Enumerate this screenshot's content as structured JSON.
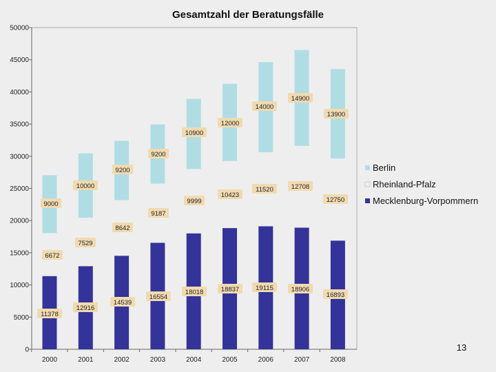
{
  "chart_data": {
    "type": "bar",
    "stacked": true,
    "title": "Gesamtzahl der Beratungsfälle",
    "xlabel": "",
    "ylabel": "",
    "ylim": [
      0,
      50000
    ],
    "yticks": [
      0,
      5000,
      10000,
      15000,
      20000,
      25000,
      30000,
      35000,
      40000,
      45000,
      50000
    ],
    "ytick_labels": [
      "0",
      "5000",
      "10000",
      "15000",
      "20000",
      "25000",
      "30000",
      "35000",
      "40000",
      "45000",
      "50000"
    ],
    "categories": [
      "2000",
      "2001",
      "2002",
      "2003",
      "2004",
      "2005",
      "2006",
      "2007",
      "2008"
    ],
    "series": [
      {
        "name": "Mecklenburg-Vorpommern",
        "color": "#333399",
        "values": [
          11378,
          12916,
          14539,
          16554,
          18018,
          18837,
          19115,
          18906,
          16893
        ],
        "labels": [
          "11378",
          "12916",
          "14539",
          "16554",
          "18018",
          "18837",
          "19115",
          "18906",
          "16893"
        ]
      },
      {
        "name": "Rheinland-Pfalz",
        "color": "#eeeeee",
        "values": [
          6672,
          7529,
          8642,
          9187,
          9999,
          10423,
          11520,
          12708,
          12750
        ],
        "labels": [
          "6672",
          "7529",
          "8642",
          "9187",
          "9999",
          "10423",
          "11520",
          "12708",
          "12750"
        ]
      },
      {
        "name": "Berlin",
        "color": "#b0dde4",
        "values": [
          9000,
          10000,
          9200,
          9200,
          10900,
          12000,
          14000,
          14900,
          13900
        ],
        "labels": [
          "9000",
          "10000",
          "9200",
          "9200",
          "10900",
          "12000",
          "14000",
          "14900",
          "13900"
        ]
      }
    ],
    "legend_position": "right",
    "grid": false
  },
  "page_number": "13"
}
